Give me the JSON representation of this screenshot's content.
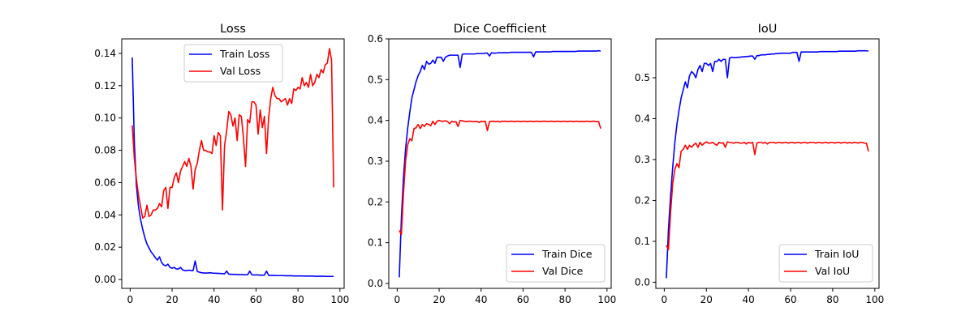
{
  "chart_data": [
    {
      "type": "line",
      "title": "Loss",
      "xlabel": "",
      "ylabel": "",
      "xlim": [
        -4,
        102
      ],
      "ylim": [
        -0.0055,
        0.149
      ],
      "xticks": [
        0,
        20,
        40,
        60,
        80,
        100
      ],
      "yticks": [
        0.0,
        0.02,
        0.04,
        0.06,
        0.08,
        0.1,
        0.12,
        0.14
      ],
      "ytick_labels": [
        "0.00",
        "0.02",
        "0.04",
        "0.06",
        "0.08",
        "0.10",
        "0.12",
        "0.14"
      ],
      "legend": "top-center",
      "grid": false,
      "x": [
        1,
        2,
        3,
        4,
        5,
        6,
        7,
        8,
        9,
        10,
        11,
        12,
        13,
        14,
        15,
        16,
        17,
        18,
        19,
        20,
        21,
        22,
        23,
        24,
        25,
        26,
        27,
        28,
        29,
        30,
        31,
        32,
        33,
        34,
        35,
        36,
        37,
        38,
        39,
        40,
        41,
        42,
        43,
        44,
        45,
        46,
        47,
        48,
        49,
        50,
        51,
        52,
        53,
        54,
        55,
        56,
        57,
        58,
        59,
        60,
        61,
        62,
        63,
        64,
        65,
        66,
        67,
        68,
        69,
        70,
        71,
        72,
        73,
        74,
        75,
        76,
        77,
        78,
        79,
        80,
        81,
        82,
        83,
        84,
        85,
        86,
        87,
        88,
        89,
        90,
        91,
        92,
        93,
        94,
        95,
        96,
        97
      ],
      "series": [
        {
          "name": "Train Loss",
          "color": "#0000ff",
          "values": [
            0.1375,
            0.085,
            0.058,
            0.045,
            0.037,
            0.031,
            0.026,
            0.022,
            0.0195,
            0.017,
            0.0155,
            0.0135,
            0.012,
            0.014,
            0.0105,
            0.009,
            0.0085,
            0.0095,
            0.0075,
            0.007,
            0.0075,
            0.0065,
            0.0065,
            0.0075,
            0.006,
            0.0055,
            0.0055,
            0.0058,
            0.0055,
            0.0055,
            0.0115,
            0.005,
            0.0045,
            0.0042,
            0.004,
            0.004,
            0.004,
            0.0042,
            0.004,
            0.0039,
            0.0038,
            0.0038,
            0.0037,
            0.0036,
            0.0035,
            0.0052,
            0.0033,
            0.0032,
            0.0032,
            0.0031,
            0.0031,
            0.003,
            0.003,
            0.003,
            0.0029,
            0.0029,
            0.0052,
            0.0029,
            0.0028,
            0.0028,
            0.0028,
            0.0027,
            0.0027,
            0.0027,
            0.0052,
            0.0026,
            0.0025,
            0.0025,
            0.0025,
            0.0024,
            0.0024,
            0.0024,
            0.0024,
            0.0023,
            0.0023,
            0.0023,
            0.0023,
            0.0022,
            0.0022,
            0.0022,
            0.0022,
            0.0022,
            0.0021,
            0.0021,
            0.0021,
            0.0021,
            0.0021,
            0.002,
            0.002,
            0.002,
            0.002,
            0.002,
            0.002,
            0.0019,
            0.0019,
            0.0019,
            0.0019
          ]
        },
        {
          "name": "Val Loss",
          "color": "#ff0000",
          "values": [
            0.0955,
            0.075,
            0.062,
            0.052,
            0.045,
            0.038,
            0.039,
            0.046,
            0.039,
            0.04,
            0.043,
            0.043,
            0.044,
            0.047,
            0.045,
            0.055,
            0.057,
            0.044,
            0.057,
            0.057,
            0.063,
            0.066,
            0.06,
            0.067,
            0.07,
            0.073,
            0.07,
            0.075,
            0.07,
            0.056,
            0.068,
            0.072,
            0.08,
            0.086,
            0.08,
            0.08,
            0.079,
            0.079,
            0.078,
            0.089,
            0.083,
            0.091,
            0.089,
            0.043,
            0.083,
            0.092,
            0.104,
            0.102,
            0.095,
            0.1,
            0.086,
            0.102,
            0.101,
            0.088,
            0.07,
            0.099,
            0.097,
            0.11,
            0.11,
            0.108,
            0.09,
            0.105,
            0.094,
            0.101,
            0.078,
            0.1,
            0.112,
            0.119,
            0.114,
            0.112,
            0.112,
            0.11,
            0.111,
            0.112,
            0.108,
            0.112,
            0.109,
            0.118,
            0.117,
            0.119,
            0.118,
            0.125,
            0.12,
            0.122,
            0.119,
            0.127,
            0.12,
            0.122,
            0.127,
            0.125,
            0.13,
            0.128,
            0.133,
            0.134,
            0.143,
            0.136,
            0.057
          ]
        }
      ]
    },
    {
      "type": "line",
      "title": "Dice Coefficient",
      "xlabel": "",
      "ylabel": "",
      "xlim": [
        -4,
        102
      ],
      "ylim": [
        -0.012,
        0.6
      ],
      "xticks": [
        0,
        20,
        40,
        60,
        80,
        100
      ],
      "yticks": [
        0.0,
        0.1,
        0.2,
        0.3,
        0.4,
        0.5,
        0.6
      ],
      "ytick_labels": [
        "0.0",
        "0.1",
        "0.2",
        "0.3",
        "0.4",
        "0.5",
        "0.6"
      ],
      "legend": "bottom-right",
      "grid": false,
      "x": [
        1,
        2,
        3,
        4,
        5,
        6,
        7,
        8,
        9,
        10,
        11,
        12,
        13,
        14,
        15,
        16,
        17,
        18,
        19,
        20,
        21,
        22,
        23,
        24,
        25,
        26,
        27,
        28,
        29,
        30,
        31,
        32,
        33,
        34,
        35,
        36,
        37,
        38,
        39,
        40,
        41,
        42,
        43,
        44,
        45,
        46,
        47,
        48,
        49,
        50,
        51,
        52,
        53,
        54,
        55,
        56,
        57,
        58,
        59,
        60,
        61,
        62,
        63,
        64,
        65,
        66,
        67,
        68,
        69,
        70,
        71,
        72,
        73,
        74,
        75,
        76,
        77,
        78,
        79,
        80,
        81,
        82,
        83,
        84,
        85,
        86,
        87,
        88,
        89,
        90,
        91,
        92,
        93,
        94,
        95,
        96,
        97
      ],
      "series": [
        {
          "name": "Train Dice",
          "color": "#0000ff",
          "values": [
            0.015,
            0.16,
            0.26,
            0.33,
            0.38,
            0.42,
            0.455,
            0.475,
            0.495,
            0.51,
            0.52,
            0.535,
            0.525,
            0.545,
            0.538,
            0.54,
            0.548,
            0.54,
            0.555,
            0.555,
            0.555,
            0.545,
            0.555,
            0.558,
            0.56,
            0.56,
            0.56,
            0.56,
            0.56,
            0.53,
            0.562,
            0.563,
            0.563,
            0.563,
            0.563,
            0.563,
            0.563,
            0.564,
            0.564,
            0.564,
            0.564,
            0.565,
            0.565,
            0.558,
            0.566,
            0.565,
            0.565,
            0.566,
            0.566,
            0.566,
            0.566,
            0.566,
            0.566,
            0.567,
            0.567,
            0.567,
            0.567,
            0.567,
            0.567,
            0.567,
            0.567,
            0.567,
            0.567,
            0.567,
            0.556,
            0.568,
            0.568,
            0.568,
            0.568,
            0.568,
            0.568,
            0.568,
            0.568,
            0.569,
            0.569,
            0.569,
            0.569,
            0.569,
            0.569,
            0.569,
            0.569,
            0.569,
            0.569,
            0.569,
            0.569,
            0.57,
            0.57,
            0.57,
            0.57,
            0.57,
            0.57,
            0.57,
            0.57,
            0.57,
            0.57,
            0.571,
            0.57
          ]
        },
        {
          "name": "Val Dice",
          "color": "#ff0000",
          "values": [
            0.13,
            0.12,
            0.22,
            0.3,
            0.34,
            0.355,
            0.35,
            0.38,
            0.382,
            0.39,
            0.38,
            0.39,
            0.385,
            0.392,
            0.39,
            0.387,
            0.398,
            0.39,
            0.398,
            0.4,
            0.398,
            0.398,
            0.399,
            0.397,
            0.392,
            0.398,
            0.396,
            0.397,
            0.385,
            0.4,
            0.399,
            0.398,
            0.397,
            0.398,
            0.398,
            0.397,
            0.397,
            0.398,
            0.395,
            0.398,
            0.397,
            0.398,
            0.375,
            0.397,
            0.398,
            0.398,
            0.397,
            0.398,
            0.396,
            0.398,
            0.398,
            0.398,
            0.397,
            0.398,
            0.398,
            0.397,
            0.398,
            0.398,
            0.397,
            0.398,
            0.398,
            0.397,
            0.398,
            0.398,
            0.397,
            0.398,
            0.398,
            0.397,
            0.398,
            0.398,
            0.398,
            0.397,
            0.398,
            0.398,
            0.397,
            0.398,
            0.398,
            0.397,
            0.398,
            0.398,
            0.397,
            0.398,
            0.398,
            0.397,
            0.398,
            0.398,
            0.397,
            0.398,
            0.397,
            0.398,
            0.398,
            0.397,
            0.398,
            0.398,
            0.397,
            0.397,
            0.38
          ]
        }
      ]
    },
    {
      "type": "line",
      "title": "IoU",
      "xlabel": "",
      "ylabel": "",
      "xlim": [
        -4,
        102
      ],
      "ylim": [
        -0.015,
        0.595
      ],
      "xticks": [
        0,
        20,
        40,
        60,
        80,
        100
      ],
      "yticks": [
        0.0,
        0.1,
        0.2,
        0.3,
        0.4,
        0.5
      ],
      "ytick_labels": [
        "0.0",
        "0.1",
        "0.2",
        "0.3",
        "0.4",
        "0.5"
      ],
      "legend": "bottom-right",
      "grid": false,
      "x": [
        1,
        2,
        3,
        4,
        5,
        6,
        7,
        8,
        9,
        10,
        11,
        12,
        13,
        14,
        15,
        16,
        17,
        18,
        19,
        20,
        21,
        22,
        23,
        24,
        25,
        26,
        27,
        28,
        29,
        30,
        31,
        32,
        33,
        34,
        35,
        36,
        37,
        38,
        39,
        40,
        41,
        42,
        43,
        44,
        45,
        46,
        47,
        48,
        49,
        50,
        51,
        52,
        53,
        54,
        55,
        56,
        57,
        58,
        59,
        60,
        61,
        62,
        63,
        64,
        65,
        66,
        67,
        68,
        69,
        70,
        71,
        72,
        73,
        74,
        75,
        76,
        77,
        78,
        79,
        80,
        81,
        82,
        83,
        84,
        85,
        86,
        87,
        88,
        89,
        90,
        91,
        92,
        93,
        94,
        95,
        96,
        97
      ],
      "series": [
        {
          "name": "Train IoU",
          "color": "#0000ff",
          "values": [
            0.01,
            0.13,
            0.21,
            0.28,
            0.34,
            0.385,
            0.42,
            0.45,
            0.47,
            0.49,
            0.475,
            0.505,
            0.515,
            0.51,
            0.5,
            0.52,
            0.53,
            0.515,
            0.535,
            0.535,
            0.53,
            0.535,
            0.515,
            0.54,
            0.54,
            0.545,
            0.54,
            0.545,
            0.545,
            0.5,
            0.548,
            0.55,
            0.549,
            0.549,
            0.55,
            0.55,
            0.551,
            0.551,
            0.552,
            0.552,
            0.553,
            0.553,
            0.545,
            0.554,
            0.554,
            0.556,
            0.556,
            0.556,
            0.557,
            0.557,
            0.558,
            0.558,
            0.559,
            0.559,
            0.56,
            0.56,
            0.56,
            0.56,
            0.56,
            0.56,
            0.562,
            0.562,
            0.562,
            0.54,
            0.563,
            0.563,
            0.563,
            0.563,
            0.563,
            0.563,
            0.563,
            0.563,
            0.563,
            0.564,
            0.564,
            0.564,
            0.564,
            0.564,
            0.564,
            0.564,
            0.564,
            0.564,
            0.565,
            0.565,
            0.565,
            0.565,
            0.565,
            0.565,
            0.565,
            0.565,
            0.565,
            0.566,
            0.566,
            0.566,
            0.566,
            0.566,
            0.565
          ]
        },
        {
          "name": "Val IoU",
          "color": "#ff0000",
          "values": [
            0.09,
            0.08,
            0.17,
            0.24,
            0.275,
            0.29,
            0.28,
            0.32,
            0.325,
            0.335,
            0.325,
            0.335,
            0.33,
            0.336,
            0.34,
            0.33,
            0.342,
            0.335,
            0.34,
            0.343,
            0.34,
            0.34,
            0.342,
            0.338,
            0.335,
            0.342,
            0.34,
            0.341,
            0.33,
            0.343,
            0.342,
            0.341,
            0.34,
            0.342,
            0.342,
            0.34,
            0.34,
            0.342,
            0.338,
            0.342,
            0.34,
            0.342,
            0.312,
            0.34,
            0.342,
            0.342,
            0.34,
            0.342,
            0.338,
            0.342,
            0.342,
            0.342,
            0.34,
            0.342,
            0.342,
            0.34,
            0.342,
            0.342,
            0.34,
            0.342,
            0.342,
            0.34,
            0.342,
            0.342,
            0.34,
            0.342,
            0.342,
            0.34,
            0.342,
            0.342,
            0.342,
            0.34,
            0.342,
            0.342,
            0.34,
            0.342,
            0.342,
            0.34,
            0.342,
            0.342,
            0.34,
            0.342,
            0.342,
            0.34,
            0.342,
            0.342,
            0.34,
            0.342,
            0.34,
            0.342,
            0.342,
            0.34,
            0.342,
            0.342,
            0.34,
            0.34,
            0.32
          ]
        }
      ]
    }
  ]
}
